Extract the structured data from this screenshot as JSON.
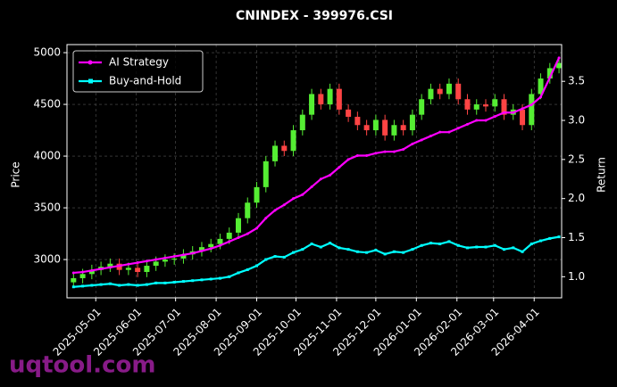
{
  "chart_data": {
    "type": "candlestick",
    "title": "CNINDEX - 399976.CSI",
    "ylabel": "Price",
    "y2label": "Return",
    "watermark": "uqtool.com",
    "x": [
      "2025-04-14",
      "2025-04-21",
      "2025-04-28",
      "2025-05-05",
      "2025-05-12",
      "2025-05-19",
      "2025-05-26",
      "2025-06-02",
      "2025-06-09",
      "2025-06-16",
      "2025-06-23",
      "2025-06-30",
      "2025-07-07",
      "2025-07-14",
      "2025-07-21",
      "2025-07-28",
      "2025-08-04",
      "2025-08-11",
      "2025-08-18",
      "2025-08-25",
      "2025-09-01",
      "2025-09-08",
      "2025-09-15",
      "2025-09-22",
      "2025-09-29",
      "2025-10-06",
      "2025-10-13",
      "2025-10-20",
      "2025-10-27",
      "2025-11-03",
      "2025-11-10",
      "2025-11-17",
      "2025-11-24",
      "2025-12-01",
      "2025-12-08",
      "2025-12-15",
      "2025-12-22",
      "2025-12-29",
      "2026-01-05",
      "2026-01-12",
      "2026-01-19",
      "2026-01-26",
      "2026-02-02",
      "2026-02-09",
      "2026-02-16",
      "2026-02-23",
      "2026-03-02",
      "2026-03-09",
      "2026-03-16",
      "2026-03-23",
      "2026-03-30",
      "2026-04-06",
      "2026-04-13",
      "2026-04-20"
    ],
    "open": [
      2780,
      2820,
      2860,
      2900,
      2930,
      2960,
      2900,
      2920,
      2880,
      2940,
      2980,
      3000,
      3010,
      3050,
      3080,
      3120,
      3150,
      3200,
      3260,
      3400,
      3550,
      3700,
      3950,
      4100,
      4050,
      4250,
      4400,
      4600,
      4500,
      4650,
      4450,
      4380,
      4300,
      4250,
      4350,
      4200,
      4300,
      4250,
      4400,
      4550,
      4650,
      4600,
      4700,
      4550,
      4450,
      4500,
      4480,
      4550,
      4400,
      4450,
      4300,
      4600,
      4750,
      4850
    ],
    "high": [
      2870,
      2910,
      2950,
      2980,
      3010,
      3010,
      2970,
      2970,
      2990,
      3030,
      3050,
      3060,
      3100,
      3130,
      3170,
      3200,
      3250,
      3310,
      3450,
      3600,
      3750,
      4000,
      4150,
      4150,
      4300,
      4450,
      4650,
      4650,
      4700,
      4700,
      4500,
      4430,
      4350,
      4400,
      4400,
      4350,
      4350,
      4450,
      4600,
      4700,
      4700,
      4750,
      4750,
      4600,
      4550,
      4550,
      4600,
      4600,
      4500,
      4500,
      4650,
      4800,
      4900,
      4950
    ],
    "low": [
      2730,
      2770,
      2810,
      2850,
      2880,
      2850,
      2850,
      2830,
      2830,
      2890,
      2930,
      2950,
      2960,
      3000,
      3030,
      3070,
      3100,
      3150,
      3210,
      3350,
      3500,
      3650,
      3900,
      4000,
      4000,
      4200,
      4350,
      4450,
      4450,
      4400,
      4330,
      4250,
      4200,
      4200,
      4150,
      4150,
      4200,
      4200,
      4350,
      4500,
      4550,
      4550,
      4500,
      4400,
      4400,
      4430,
      4430,
      4350,
      4350,
      4250,
      4250,
      4550,
      4700,
      4800
    ],
    "close": [
      2820,
      2860,
      2900,
      2930,
      2960,
      2900,
      2920,
      2880,
      2940,
      2980,
      3000,
      3010,
      3050,
      3080,
      3120,
      3150,
      3200,
      3260,
      3400,
      3550,
      3700,
      3950,
      4100,
      4050,
      4250,
      4400,
      4600,
      4500,
      4650,
      4450,
      4380,
      4300,
      4250,
      4350,
      4200,
      4300,
      4250,
      4400,
      4550,
      4650,
      4600,
      4700,
      4550,
      4450,
      4500,
      4480,
      4550,
      4400,
      4450,
      4300,
      4600,
      4750,
      4850,
      4900
    ],
    "up_color": "#55ee33",
    "down_color": "#ff4444",
    "lines": [
      {
        "name": "AI Strategy",
        "color": "#ff00ff",
        "marker": "circle",
        "axis": "y2",
        "values": [
          1.05,
          1.06,
          1.08,
          1.1,
          1.12,
          1.14,
          1.16,
          1.18,
          1.2,
          1.22,
          1.24,
          1.26,
          1.28,
          1.3,
          1.33,
          1.36,
          1.4,
          1.45,
          1.5,
          1.55,
          1.62,
          1.75,
          1.85,
          1.92,
          2.0,
          2.05,
          2.15,
          2.25,
          2.3,
          2.4,
          2.5,
          2.55,
          2.55,
          2.58,
          2.6,
          2.6,
          2.63,
          2.7,
          2.75,
          2.8,
          2.85,
          2.85,
          2.9,
          2.95,
          3.0,
          3.0,
          3.05,
          3.1,
          3.1,
          3.15,
          3.2,
          3.3,
          3.55,
          3.8
        ]
      },
      {
        "name": "Buy-and-Hold",
        "color": "#00ffff",
        "marker": "square",
        "axis": "y2",
        "values": [
          0.87,
          0.88,
          0.89,
          0.9,
          0.91,
          0.89,
          0.9,
          0.89,
          0.9,
          0.92,
          0.92,
          0.93,
          0.94,
          0.95,
          0.96,
          0.97,
          0.98,
          1.0,
          1.05,
          1.09,
          1.14,
          1.22,
          1.26,
          1.25,
          1.31,
          1.35,
          1.42,
          1.38,
          1.43,
          1.37,
          1.35,
          1.32,
          1.31,
          1.34,
          1.29,
          1.32,
          1.31,
          1.35,
          1.4,
          1.43,
          1.42,
          1.45,
          1.4,
          1.37,
          1.38,
          1.38,
          1.4,
          1.35,
          1.37,
          1.32,
          1.42,
          1.46,
          1.49,
          1.51
        ]
      }
    ],
    "xlim": [
      "2025-04-09",
      "2026-04-22"
    ],
    "xticks": [
      "2025-05-01",
      "2025-06-01",
      "2025-07-01",
      "2025-08-01",
      "2025-09-01",
      "2025-10-01",
      "2025-11-01",
      "2025-12-01",
      "2026-01-01",
      "2026-02-01",
      "2026-03-01",
      "2026-04-01"
    ],
    "ylim": [
      2630,
      5078
    ],
    "yticks": [
      3000,
      3500,
      4000,
      4500,
      5000
    ],
    "y2lim": [
      0.73,
      3.97
    ],
    "y2ticks": [
      {
        "value": 1,
        "label": "1.0"
      },
      1.5,
      {
        "value": 2,
        "label": "2.0"
      },
      2.5,
      {
        "value": 3,
        "label": "3.0"
      },
      3.5
    ],
    "grid": true,
    "legend_position": "upper-left"
  }
}
